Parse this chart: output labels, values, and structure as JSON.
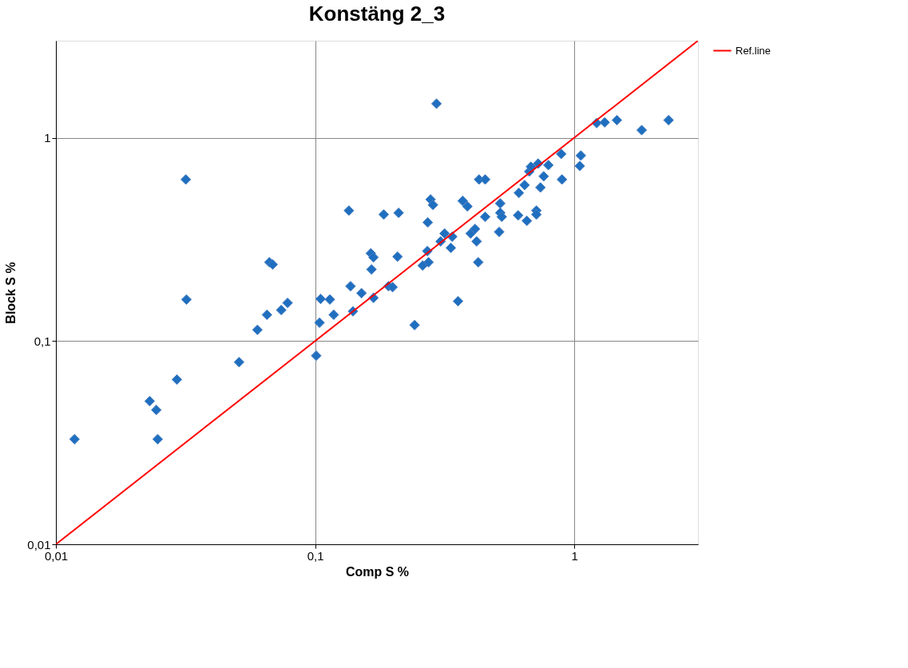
{
  "chart_data": {
    "type": "scatter",
    "title": "Konstäng 2_3",
    "xlabel": "Comp S  %",
    "ylabel": "Block S %",
    "log": "xy",
    "grid": true,
    "legend": "right",
    "xlim": [
      0.01,
      3
    ],
    "ylim": [
      0.01,
      3
    ],
    "xticks": [
      {
        "value": 0.01,
        "label": "0,01"
      },
      {
        "value": 0.1,
        "label": "0,1"
      },
      1
    ],
    "yticks": [
      {
        "value": 0.01,
        "label": "0,01"
      },
      {
        "value": 0.1,
        "label": "0,1"
      },
      1
    ],
    "series": [
      {
        "color": "#1f6fc0",
        "marker": "diamond",
        "x": [
          0.0118,
          0.023,
          0.0244,
          0.0247,
          0.0293,
          0.0317,
          0.0319,
          0.0509,
          0.0599,
          0.0652,
          0.0666,
          0.0686,
          0.074,
          0.0783,
          0.101,
          0.105,
          0.104,
          0.114,
          0.118,
          0.135,
          0.137,
          0.14,
          0.151,
          0.164,
          0.168,
          0.165,
          0.168,
          0.184,
          0.192,
          0.199,
          0.21,
          0.208,
          0.242,
          0.26,
          0.271,
          0.272,
          0.274,
          0.279,
          0.285,
          0.294,
          0.305,
          0.316,
          0.334,
          0.338,
          0.356,
          0.371,
          0.387,
          0.398,
          0.414,
          0.42,
          0.426,
          0.429,
          0.453,
          0.453,
          0.513,
          0.518,
          0.518,
          0.525,
          0.607,
          0.611,
          0.643,
          0.656,
          0.67,
          0.68,
          0.714,
          0.714,
          0.725,
          0.74,
          0.762,
          0.794,
          0.89,
          0.896,
          1.06,
          1.05,
          1.22,
          1.31,
          1.46,
          1.82,
          2.31
        ],
        "values": [
          0.0329,
          0.0506,
          0.0458,
          0.0329,
          0.0646,
          0.623,
          0.16,
          0.0787,
          0.1135,
          0.1346,
          0.244,
          0.238,
          0.142,
          0.154,
          0.0847,
          0.161,
          0.123,
          0.16,
          0.1346,
          0.438,
          0.186,
          0.14,
          0.172,
          0.27,
          0.258,
          0.225,
          0.163,
          0.419,
          0.186,
          0.184,
          0.427,
          0.26,
          0.1198,
          0.235,
          0.277,
          0.383,
          0.244,
          0.497,
          0.467,
          1.47,
          0.309,
          0.338,
          0.287,
          0.326,
          0.157,
          0.489,
          0.459,
          0.338,
          0.356,
          0.309,
          0.244,
          0.623,
          0.623,
          0.408,
          0.344,
          0.427,
          0.475,
          0.408,
          0.415,
          0.535,
          0.585,
          0.39,
          0.682,
          0.72,
          0.438,
          0.419,
          0.746,
          0.569,
          0.646,
          0.733,
          0.832,
          0.623,
          0.817,
          0.726,
          1.18,
          1.19,
          1.22,
          1.09,
          1.22
        ]
      },
      {
        "type": "line",
        "name": "Ref.line",
        "color": "#ff0000",
        "marker": "none",
        "x": [
          0.01,
          3
        ],
        "values": [
          0.01,
          3
        ]
      }
    ]
  }
}
